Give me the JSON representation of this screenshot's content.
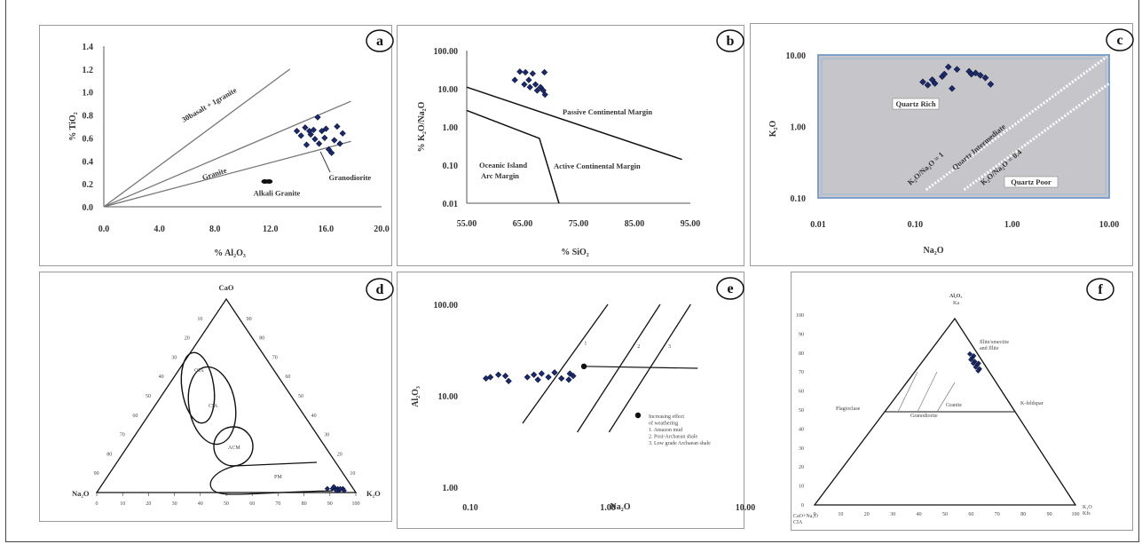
{
  "chart_data": [
    {
      "id": "a",
      "type": "scatter",
      "panel_label": "a",
      "xlabel": "% Al₂O₃",
      "ylabel": "% TiO₂",
      "xlim": [
        0,
        20
      ],
      "ylim": [
        0,
        1.4
      ],
      "x_ticks": [
        "0.0",
        "4.0",
        "8.0",
        "12.0",
        "16.0",
        "20.0"
      ],
      "y_ticks": [
        "0.0",
        "0.2",
        "0.4",
        "0.6",
        "0.8",
        "1.0",
        "1.2",
        "1.4"
      ],
      "lines": [
        {
          "label": "30basalt + 1granite",
          "points": [
            [
              0,
              0
            ],
            [
              13.4,
              1.2
            ]
          ]
        },
        {
          "label": "",
          "points": [
            [
              0,
              0
            ],
            [
              17.8,
              0.92
            ]
          ]
        },
        {
          "label": "Granite",
          "points": [
            [
              0,
              0
            ],
            [
              17.8,
              0.57
            ]
          ]
        }
      ],
      "points": [
        [
          13.9,
          0.66
        ],
        [
          14.2,
          0.62
        ],
        [
          14.5,
          0.69
        ],
        [
          14.8,
          0.66
        ],
        [
          14.9,
          0.63
        ],
        [
          15.1,
          0.67
        ],
        [
          15.2,
          0.59
        ],
        [
          15.4,
          0.78
        ],
        [
          15.5,
          0.55
        ],
        [
          15.7,
          0.66
        ],
        [
          15.9,
          0.6
        ],
        [
          16.0,
          0.68
        ],
        [
          16.2,
          0.5
        ],
        [
          16.4,
          0.47
        ],
        [
          16.6,
          0.58
        ],
        [
          16.8,
          0.7
        ],
        [
          17.0,
          0.55
        ],
        [
          17.2,
          0.64
        ],
        [
          14.6,
          0.54
        ]
      ],
      "extra_points": [
        [
          11.6,
          0.22
        ],
        [
          11.9,
          0.22
        ]
      ],
      "annotations": [
        "Alkali Granite",
        "Granodiorite"
      ]
    },
    {
      "id": "b",
      "type": "scatter",
      "panel_label": "b",
      "xlabel": "% SiO₂",
      "ylabel": "% K₂O/Na₂O",
      "xlim": [
        55,
        95
      ],
      "ylim": [
        0.01,
        100
      ],
      "yscale": "log",
      "x_ticks": [
        "55.00",
        "65.00",
        "75.00",
        "85.00",
        "95.00"
      ],
      "y_ticks": [
        "100.00",
        "10.00",
        "1.00",
        "0.10",
        "0.01"
      ],
      "lines": [
        {
          "points": [
            [
              55,
              11
            ],
            [
              93.5,
              0.14
            ]
          ]
        },
        {
          "points": [
            [
              55,
              2.7
            ],
            [
              68,
              0.5
            ],
            [
              71.5,
              0.01
            ]
          ]
        }
      ],
      "points": [
        [
          63.6,
          17
        ],
        [
          64.5,
          28
        ],
        [
          65.5,
          27
        ],
        [
          65.3,
          13
        ],
        [
          66.1,
          17
        ],
        [
          66.3,
          11
        ],
        [
          66.8,
          25
        ],
        [
          67.3,
          13
        ],
        [
          67.6,
          9
        ],
        [
          68.2,
          11
        ],
        [
          68.9,
          27
        ],
        [
          68.7,
          9
        ],
        [
          69.0,
          7
        ]
      ],
      "annotations": [
        "Passive Continental Margin",
        "Active Continental Margin",
        "Oceanic Island",
        "Arc Margin"
      ]
    },
    {
      "id": "c",
      "type": "scatter",
      "panel_label": "c",
      "xlabel": "Na₂O",
      "ylabel": "K₂O",
      "xlim": [
        0.01,
        10
      ],
      "ylim": [
        0.1,
        10
      ],
      "xscale": "log",
      "yscale": "log",
      "x_ticks": [
        "0.01",
        "0.10",
        "1.00",
        "10.00"
      ],
      "y_ticks": [
        "10.00",
        "1.00",
        "0.10"
      ],
      "points": [
        [
          0.12,
          4.2
        ],
        [
          0.135,
          3.8
        ],
        [
          0.15,
          4.5
        ],
        [
          0.16,
          4.0
        ],
        [
          0.19,
          5.0
        ],
        [
          0.2,
          5.4
        ],
        [
          0.22,
          6.8
        ],
        [
          0.24,
          3.4
        ],
        [
          0.27,
          6.3
        ],
        [
          0.36,
          5.9
        ],
        [
          0.38,
          5.4
        ],
        [
          0.42,
          5.6
        ],
        [
          0.47,
          5.2
        ],
        [
          0.53,
          4.8
        ],
        [
          0.6,
          3.9
        ]
      ],
      "annotations": [
        "Quartz Rich",
        "Quartz Intermediate",
        "K₂O/Na₂O = 1",
        "K₂O/Na₂O = 0.4",
        "Quartz Poor"
      ]
    },
    {
      "id": "d",
      "type": "scatter",
      "panel_label": "d",
      "subtype": "ternary",
      "apex_labels": {
        "top": "CaO",
        "left": "Na₂O",
        "right": "K₂O"
      },
      "base_ticks": [
        "0",
        "10",
        "20",
        "30",
        "40",
        "50",
        "60",
        "70",
        "80",
        "90",
        "100"
      ],
      "field_labels": [
        "OIA",
        "CIA",
        "ACM",
        "PM"
      ],
      "points": [
        [
          2,
          88
        ],
        [
          2,
          90
        ],
        [
          2,
          92
        ],
        [
          1,
          93
        ],
        [
          2,
          94
        ],
        [
          1,
          95
        ],
        [
          2,
          91
        ],
        [
          3,
          90
        ],
        [
          1,
          92
        ],
        [
          2,
          93
        ]
      ]
    },
    {
      "id": "e",
      "type": "scatter",
      "panel_label": "e",
      "xlabel": "Na₂O",
      "ylabel": "Al₂O₃",
      "xlim": [
        0.1,
        10
      ],
      "ylim": [
        1,
        100
      ],
      "xscale": "log",
      "yscale": "log",
      "x_ticks": [
        "0.10",
        "1.00",
        "10.00"
      ],
      "y_ticks": [
        "100.00",
        "10.00",
        "1.00"
      ],
      "trend_labels": [
        "1",
        "2",
        "3"
      ],
      "points": [
        [
          0.13,
          15.5
        ],
        [
          0.14,
          16
        ],
        [
          0.16,
          17
        ],
        [
          0.18,
          16.5
        ],
        [
          0.19,
          14.5
        ],
        [
          0.26,
          16
        ],
        [
          0.29,
          17
        ],
        [
          0.31,
          15
        ],
        [
          0.33,
          17.5
        ],
        [
          0.37,
          16
        ],
        [
          0.41,
          18
        ],
        [
          0.46,
          15.5
        ],
        [
          0.52,
          15
        ],
        [
          0.53,
          17.5
        ],
        [
          0.56,
          16.5
        ]
      ],
      "legend_lines": [
        "Increasing effect",
        "of weathering",
        "1. Amazon mud",
        "2. Post-Archaean shale",
        "3. Low grade Archaean shale"
      ]
    },
    {
      "id": "f",
      "type": "scatter",
      "panel_label": "f",
      "subtype": "ternary",
      "apex_labels": {
        "top": "Al₂O₃",
        "left": "CaO+Na₂O",
        "right": "K₂O"
      },
      "side_labels": {
        "top_sub": "Ka",
        "left_sub": "CIA",
        "right_sub": "Kfs"
      },
      "left_ticks": [
        "100",
        "90",
        "80",
        "70",
        "60",
        "50",
        "40",
        "30",
        "20",
        "10",
        "0"
      ],
      "base_ticks": [
        "0",
        "10",
        "20",
        "30",
        "40",
        "50",
        "60",
        "70",
        "80",
        "90",
        "100"
      ],
      "annotations": [
        "Illite/smectite",
        "and Illite",
        "Plagioclase",
        "K-feldspar",
        "Granodiorite",
        "Granite"
      ],
      "points": [
        [
          3,
          75
        ],
        [
          3,
          77
        ],
        [
          4,
          76
        ],
        [
          3,
          79
        ],
        [
          4,
          78
        ],
        [
          2,
          80
        ],
        [
          3,
          81
        ],
        [
          2,
          76
        ],
        [
          4,
          74
        ],
        [
          3,
          73
        ],
        [
          4,
          72
        ]
      ]
    }
  ]
}
